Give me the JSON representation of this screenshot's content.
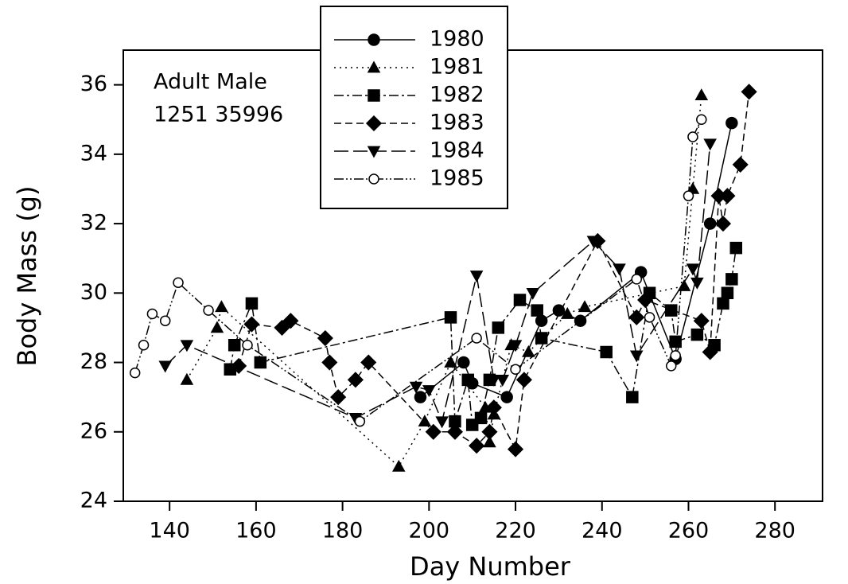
{
  "chart_data": {
    "type": "line",
    "xlabel": "Day Number",
    "ylabel": "Body Mass (g)",
    "annotations": [
      "Adult Male",
      "1251 35996"
    ],
    "xlim": [
      129.3,
      291
    ],
    "xticks": [
      140,
      160,
      180,
      200,
      220,
      240,
      260,
      280
    ],
    "ylim": [
      24,
      37
    ],
    "yticks": [
      24,
      26,
      28,
      30,
      32,
      34,
      36
    ],
    "color": "#000000",
    "legend": "top-center",
    "series": [
      {
        "name": "1980",
        "marker": "circle",
        "line_style": "solid",
        "x": [
          198,
          208,
          210,
          218,
          226,
          230,
          235,
          249,
          257,
          265,
          270
        ],
        "values": [
          27.0,
          28.0,
          27.4,
          27.0,
          29.2,
          29.5,
          29.2,
          30.6,
          28.1,
          32.0,
          34.9
        ]
      },
      {
        "name": "1981",
        "marker": "triangle-up",
        "line_style": "dotted",
        "x": [
          144,
          151,
          152,
          193,
          199,
          205,
          213,
          214,
          215,
          219,
          223,
          232,
          236,
          259,
          261,
          263
        ],
        "values": [
          27.5,
          29.0,
          29.6,
          25.0,
          26.3,
          28.0,
          26.7,
          25.7,
          26.5,
          28.5,
          28.3,
          29.4,
          29.6,
          30.2,
          33.0,
          35.7
        ]
      },
      {
        "name": "1982",
        "marker": "square",
        "line_style": "dashdot",
        "x": [
          154,
          155,
          159,
          161,
          205,
          206,
          209,
          210,
          212,
          214,
          216,
          221,
          225,
          226,
          241,
          247,
          251,
          256,
          257,
          262,
          266,
          268,
          269,
          270,
          271
        ],
        "values": [
          27.8,
          28.5,
          29.7,
          28.0,
          29.3,
          26.3,
          27.5,
          26.2,
          26.4,
          27.5,
          29.0,
          29.8,
          29.5,
          28.7,
          28.3,
          27.0,
          30.0,
          29.5,
          28.6,
          28.8,
          28.5,
          29.7,
          30.0,
          30.4,
          31.3
        ]
      },
      {
        "name": "1983",
        "marker": "diamond",
        "line_style": "dashed",
        "x": [
          156,
          159,
          166,
          168,
          176,
          177,
          179,
          183,
          186,
          201,
          206,
          211,
          214,
          215,
          220,
          222,
          239,
          248,
          250,
          263,
          265,
          267,
          268,
          269,
          272,
          274
        ],
        "values": [
          27.9,
          29.1,
          29.0,
          29.2,
          28.7,
          28.0,
          27.0,
          27.5,
          28.0,
          26.0,
          26.0,
          25.6,
          26.0,
          26.7,
          25.5,
          27.5,
          31.5,
          29.3,
          29.8,
          29.2,
          28.3,
          32.8,
          32.0,
          32.8,
          33.7,
          35.8
        ]
      },
      {
        "name": "1984",
        "marker": "triangle-down",
        "line_style": "longdash",
        "x": [
          139,
          144,
          183,
          197,
          200,
          203,
          211,
          215,
          217,
          220,
          224,
          238,
          244,
          248,
          261,
          262,
          265
        ],
        "values": [
          27.9,
          28.5,
          26.4,
          27.3,
          27.2,
          26.3,
          30.5,
          27.5,
          27.5,
          28.5,
          30.0,
          31.5,
          30.7,
          28.2,
          30.7,
          30.3,
          34.3
        ]
      },
      {
        "name": "1985",
        "marker": "open-circle",
        "line_style": "dashdotdot",
        "x": [
          132,
          134,
          136,
          139,
          142,
          149,
          158,
          184,
          211,
          220,
          248,
          251,
          256,
          257,
          260,
          261,
          263
        ],
        "values": [
          27.7,
          28.5,
          29.4,
          29.2,
          30.3,
          29.5,
          28.5,
          26.3,
          28.7,
          27.8,
          30.4,
          29.3,
          27.9,
          28.2,
          32.8,
          34.5,
          35.0
        ]
      }
    ]
  }
}
